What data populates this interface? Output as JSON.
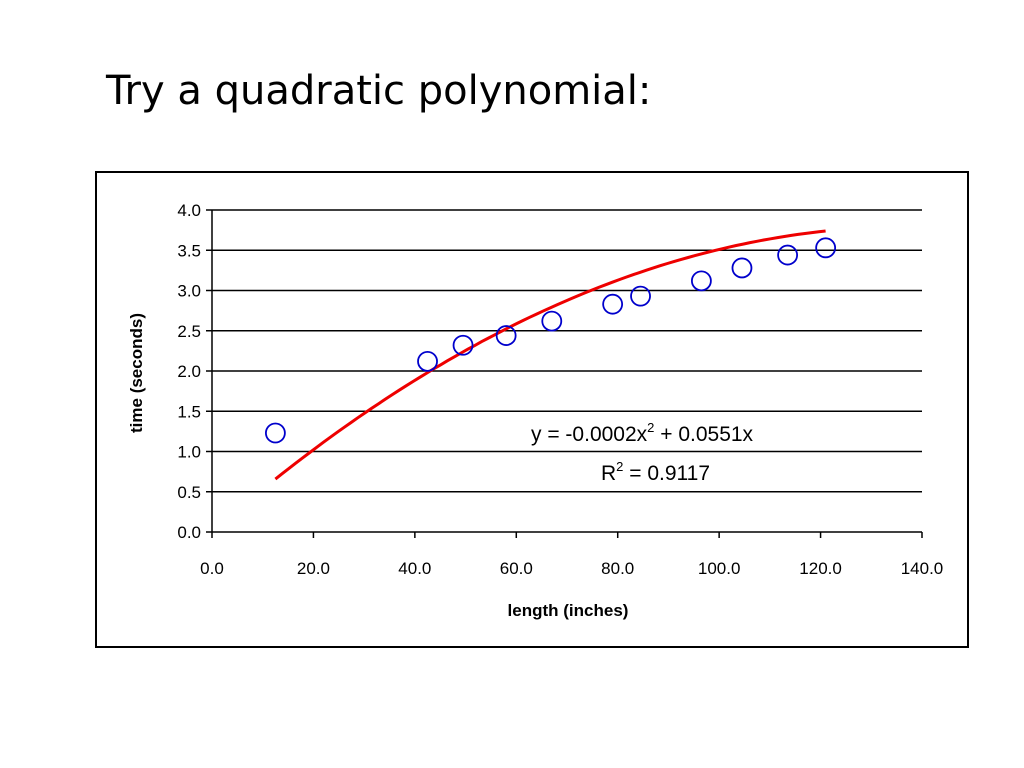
{
  "slide": {
    "title": "Try a quadratic polynomial:"
  },
  "chart_data": {
    "type": "scatter",
    "xlabel": "length (inches)",
    "ylabel": "time (seconds)",
    "xlim": [
      0,
      140
    ],
    "ylim": [
      0,
      4
    ],
    "x_ticks": [
      "0.0",
      "20.0",
      "40.0",
      "60.0",
      "80.0",
      "100.0",
      "120.0",
      "140.0"
    ],
    "y_ticks": [
      "0.0",
      "0.5",
      "1.0",
      "1.5",
      "2.0",
      "2.5",
      "3.0",
      "3.5",
      "4.0"
    ],
    "grid": "horizontal",
    "legend": "none",
    "points": [
      {
        "x": 12.5,
        "y": 1.23
      },
      {
        "x": 42.5,
        "y": 2.12
      },
      {
        "x": 49.5,
        "y": 2.32
      },
      {
        "x": 58.0,
        "y": 2.44
      },
      {
        "x": 67.0,
        "y": 2.62
      },
      {
        "x": 79.0,
        "y": 2.83
      },
      {
        "x": 84.5,
        "y": 2.93
      },
      {
        "x": 96.5,
        "y": 3.12
      },
      {
        "x": 104.5,
        "y": 3.28
      },
      {
        "x": 113.5,
        "y": 3.44
      },
      {
        "x": 121.0,
        "y": 3.53
      }
    ],
    "trendline": {
      "type": "polynomial-2",
      "coefficients": {
        "a": -0.0002,
        "b": 0.0551
      },
      "x_range": [
        12.5,
        121.0
      ],
      "equation_text": "y = -0.0002x",
      "equation_exp": "2",
      "equation_rest": " + 0.0551x",
      "r2_prefix": "R",
      "r2_exp": "2",
      "r2_rest": " = 0.9117"
    },
    "colors": {
      "points": "#0000cc",
      "trendline": "#ee0000",
      "grid": "#000000"
    }
  }
}
